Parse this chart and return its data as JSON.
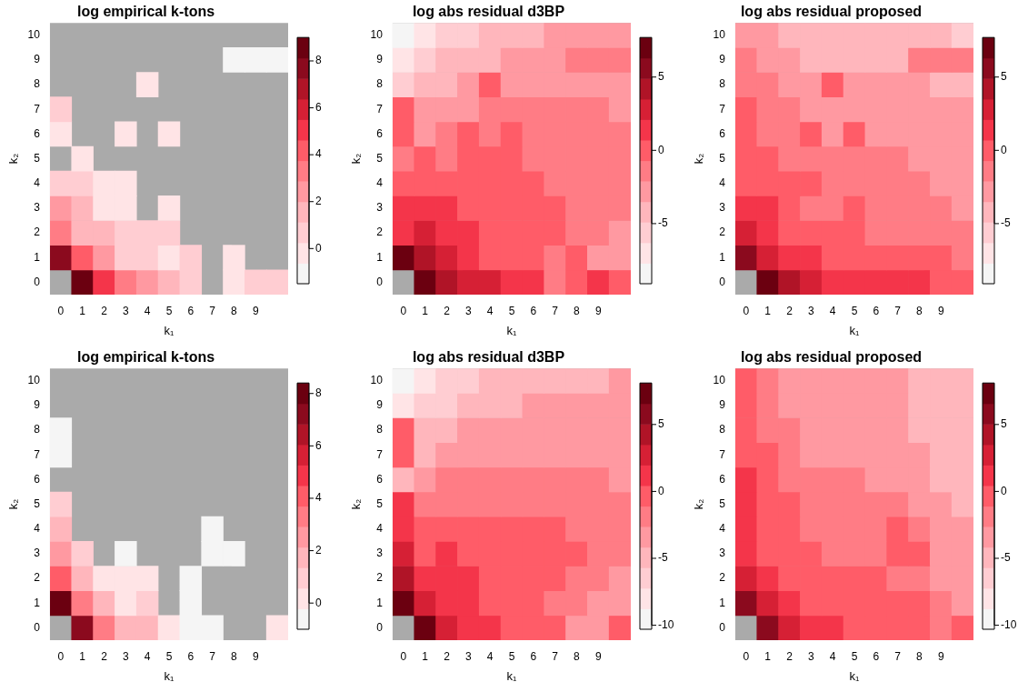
{
  "chart_data": [
    {
      "type": "heatmap",
      "title": "log empirical k-tons",
      "xlabel": "k₁",
      "ylabel": "k₂",
      "categories": [
        "0",
        "1",
        "2",
        "3",
        "4",
        "5",
        "6",
        "7",
        "8",
        "9",
        null
      ],
      "y_categories": [
        "10",
        "9",
        "8",
        "7",
        "6",
        "5",
        "4",
        "3",
        "2",
        "1",
        "0"
      ],
      "clim": [
        -1.5,
        9.0
      ],
      "cticks": [
        0,
        2,
        4,
        6,
        8
      ],
      "cells": [
        [
          null,
          null,
          null,
          null,
          null,
          null,
          null,
          null,
          null,
          null,
          null
        ],
        [
          null,
          null,
          null,
          null,
          null,
          null,
          null,
          null,
          -1.1,
          -1.1,
          -1.1
        ],
        [
          null,
          null,
          null,
          null,
          -0.2,
          null,
          null,
          null,
          null,
          null,
          null
        ],
        [
          0.7,
          null,
          null,
          null,
          null,
          null,
          null,
          null,
          null,
          null,
          null
        ],
        [
          -0.2,
          null,
          null,
          -0.2,
          null,
          -0.2,
          null,
          null,
          null,
          null,
          null
        ],
        [
          null,
          -0.2,
          null,
          null,
          null,
          null,
          null,
          null,
          null,
          null,
          null
        ],
        [
          0.7,
          0.7,
          -0.2,
          -0.2,
          null,
          null,
          null,
          null,
          null,
          null,
          null
        ],
        [
          2.4,
          1.6,
          -0.2,
          -0.2,
          null,
          -0.2,
          null,
          null,
          null,
          null,
          null
        ],
        [
          3.3,
          1.6,
          1.6,
          0.7,
          0.7,
          0.7,
          null,
          null,
          null,
          null,
          null
        ],
        [
          7.7,
          4.2,
          2.4,
          0.7,
          0.7,
          -0.2,
          0.7,
          null,
          -0.2,
          null,
          null
        ],
        [
          null,
          8.6,
          5.1,
          3.3,
          2.4,
          1.6,
          0.7,
          null,
          -0.2,
          0.7,
          0.7
        ]
      ]
    },
    {
      "type": "heatmap",
      "title": "log abs residual d3BP",
      "xlabel": "k₁",
      "ylabel": "k₂",
      "categories": [
        "0",
        "1",
        "2",
        "3",
        "4",
        "5",
        "6",
        "7",
        "8",
        "9",
        null
      ],
      "y_categories": [
        "10",
        "9",
        "8",
        "7",
        "6",
        "5",
        "4",
        "3",
        "2",
        "1",
        "0"
      ],
      "clim": [
        -9.1,
        7.7
      ],
      "cticks": [
        -5,
        0,
        5
      ],
      "cells": [
        [
          -8.4,
          -7.0,
          -5.6,
          -5.6,
          -4.2,
          -4.2,
          -4.2,
          -2.8,
          -2.8,
          -2.8,
          -2.8
        ],
        [
          -7.0,
          -5.6,
          -4.2,
          -4.2,
          -4.2,
          -2.8,
          -2.8,
          -2.8,
          -1.4,
          -1.4,
          -1.4
        ],
        [
          -5.6,
          -4.2,
          -4.2,
          -2.8,
          0.0,
          -2.8,
          -2.8,
          -2.8,
          -2.8,
          -2.8,
          -2.8
        ],
        [
          0.0,
          -2.8,
          -2.8,
          -2.8,
          -1.4,
          -1.4,
          -1.4,
          -1.4,
          -1.4,
          -1.4,
          -2.8
        ],
        [
          0.0,
          -2.8,
          -1.4,
          0.0,
          -1.4,
          0.0,
          -1.4,
          -1.4,
          -1.4,
          -1.4,
          -1.4
        ],
        [
          -1.4,
          0.0,
          -1.4,
          0.0,
          0.0,
          0.0,
          -1.4,
          -1.4,
          -1.4,
          -1.4,
          -1.4
        ],
        [
          0.0,
          0.0,
          0.0,
          0.0,
          0.0,
          0.0,
          0.0,
          -1.4,
          -1.4,
          -1.4,
          -1.4
        ],
        [
          1.4,
          1.4,
          1.4,
          0.0,
          0.0,
          0.0,
          0.0,
          0.0,
          -1.4,
          -1.4,
          -1.4
        ],
        [
          1.4,
          2.8,
          1.4,
          1.4,
          0.0,
          0.0,
          0.0,
          0.0,
          -1.4,
          -1.4,
          -2.8
        ],
        [
          7.0,
          4.2,
          2.8,
          1.4,
          0.0,
          0.0,
          0.0,
          -1.4,
          0.0,
          -2.8,
          -2.8
        ],
        [
          null,
          7.0,
          4.2,
          2.8,
          2.8,
          1.4,
          1.4,
          -1.4,
          0.0,
          1.4,
          0.0
        ]
      ]
    },
    {
      "type": "heatmap",
      "title": "log abs residual proposed",
      "xlabel": "k₁",
      "ylabel": "k₂",
      "categories": [
        "0",
        "1",
        "2",
        "3",
        "4",
        "5",
        "6",
        "7",
        "8",
        "9",
        null
      ],
      "y_categories": [
        "10",
        "9",
        "8",
        "7",
        "6",
        "5",
        "4",
        "3",
        "2",
        "1",
        "0"
      ],
      "clim": [
        -9.1,
        7.7
      ],
      "cticks": [
        -5,
        0,
        5
      ],
      "cells": [
        [
          -2.8,
          -2.8,
          -4.2,
          -4.2,
          -4.2,
          -4.2,
          -4.2,
          -4.2,
          -4.2,
          -4.2,
          -5.6
        ],
        [
          -1.4,
          -2.8,
          -2.8,
          -4.2,
          -4.2,
          -4.2,
          -4.2,
          -4.2,
          -1.4,
          -1.4,
          -1.4
        ],
        [
          -1.4,
          -1.4,
          -2.8,
          -2.8,
          0.0,
          -2.8,
          -2.8,
          -2.8,
          -2.8,
          -4.2,
          -4.2
        ],
        [
          0.0,
          -1.4,
          -1.4,
          -2.8,
          -2.8,
          -2.8,
          -2.8,
          -2.8,
          -2.8,
          -2.8,
          -2.8
        ],
        [
          0.0,
          -1.4,
          -1.4,
          0.0,
          -2.8,
          0.0,
          -2.8,
          -2.8,
          -2.8,
          -2.8,
          -2.8
        ],
        [
          0.0,
          0.0,
          -1.4,
          -1.4,
          -1.4,
          -1.4,
          -1.4,
          -1.4,
          -2.8,
          -2.8,
          -2.8
        ],
        [
          0.0,
          0.0,
          0.0,
          0.0,
          -1.4,
          -1.4,
          -1.4,
          -1.4,
          -1.4,
          -2.8,
          -2.8
        ],
        [
          1.4,
          1.4,
          0.0,
          -1.4,
          -1.4,
          0.0,
          -1.4,
          -1.4,
          -1.4,
          -1.4,
          -2.8
        ],
        [
          2.8,
          1.4,
          0.0,
          0.0,
          0.0,
          0.0,
          -1.4,
          -1.4,
          -1.4,
          -1.4,
          -1.4
        ],
        [
          5.6,
          2.8,
          1.4,
          1.4,
          0.0,
          0.0,
          0.0,
          0.0,
          0.0,
          0.0,
          -1.4
        ],
        [
          null,
          7.0,
          4.2,
          2.8,
          1.4,
          1.4,
          1.4,
          1.4,
          1.4,
          0.0,
          0.0
        ]
      ]
    },
    {
      "type": "heatmap",
      "title": "log empirical k-tons",
      "xlabel": "k₁",
      "ylabel": "k₂",
      "categories": [
        "0",
        "1",
        "2",
        "3",
        "4",
        "5",
        "6",
        "7",
        "8",
        "9",
        null
      ],
      "y_categories": [
        "10",
        "9",
        "8",
        "7",
        "6",
        "5",
        "4",
        "3",
        "2",
        "1",
        "0"
      ],
      "clim": [
        -1.0,
        8.4
      ],
      "cticks": [
        0,
        2,
        4,
        6,
        8
      ],
      "cells": [
        [
          null,
          null,
          null,
          null,
          null,
          null,
          null,
          null,
          null,
          null,
          null
        ],
        [
          null,
          null,
          null,
          null,
          null,
          null,
          null,
          null,
          null,
          null,
          null
        ],
        [
          -0.6,
          null,
          null,
          null,
          null,
          null,
          null,
          null,
          null,
          null,
          null
        ],
        [
          -0.6,
          null,
          null,
          null,
          null,
          null,
          null,
          null,
          null,
          null,
          null
        ],
        [
          null,
          null,
          null,
          null,
          null,
          null,
          null,
          null,
          null,
          null,
          null
        ],
        [
          1.0,
          null,
          null,
          null,
          null,
          null,
          null,
          null,
          null,
          null,
          null
        ],
        [
          1.7,
          null,
          null,
          null,
          null,
          null,
          null,
          -0.6,
          null,
          null,
          null
        ],
        [
          2.5,
          1.0,
          null,
          -0.6,
          null,
          null,
          null,
          -0.6,
          -0.6,
          null,
          null
        ],
        [
          4.1,
          1.7,
          0.2,
          0.2,
          0.2,
          null,
          -0.6,
          null,
          null,
          null,
          null
        ],
        [
          8.0,
          3.3,
          1.7,
          0.2,
          1.0,
          null,
          -0.6,
          null,
          null,
          null,
          null
        ],
        [
          null,
          7.2,
          3.3,
          1.7,
          1.7,
          0.2,
          -0.6,
          -0.6,
          null,
          null,
          0.2
        ]
      ]
    },
    {
      "type": "heatmap",
      "title": "log abs residual d3BP",
      "xlabel": "k₁",
      "ylabel": "k₂",
      "categories": [
        "0",
        "1",
        "2",
        "3",
        "4",
        "5",
        "6",
        "7",
        "8",
        "9",
        null
      ],
      "y_categories": [
        "10",
        "9",
        "8",
        "7",
        "6",
        "5",
        "4",
        "3",
        "2",
        "1",
        "0"
      ],
      "clim": [
        -10.3,
        8.1
      ],
      "cticks": [
        -10,
        -5,
        0,
        5
      ],
      "cells": [
        [
          -9.5,
          -8.0,
          -6.5,
          -6.5,
          -5.0,
          -5.0,
          -5.0,
          -5.0,
          -5.0,
          -5.0,
          -3.4
        ],
        [
          -8.0,
          -6.5,
          -6.5,
          -5.0,
          -5.0,
          -5.0,
          -3.4,
          -3.4,
          -3.4,
          -3.4,
          -3.4
        ],
        [
          -0.4,
          -5.0,
          -5.0,
          -3.4,
          -3.4,
          -3.4,
          -3.4,
          -3.4,
          -3.4,
          -3.4,
          -3.4
        ],
        [
          -0.4,
          -5.0,
          -3.4,
          -3.4,
          -3.4,
          -3.4,
          -3.4,
          -3.4,
          -3.4,
          -3.4,
          -3.4
        ],
        [
          -5.0,
          -3.4,
          -1.9,
          -1.9,
          -1.9,
          -1.9,
          -1.9,
          -1.9,
          -1.9,
          -1.9,
          -3.4
        ],
        [
          1.2,
          -1.9,
          -1.9,
          -1.9,
          -1.9,
          -1.9,
          -1.9,
          -1.9,
          -1.9,
          -1.9,
          -1.9
        ],
        [
          1.2,
          -0.4,
          -0.4,
          -0.4,
          -0.4,
          -0.4,
          -0.4,
          -0.4,
          -1.9,
          -1.9,
          -1.9
        ],
        [
          2.7,
          -0.4,
          1.2,
          -0.4,
          -0.4,
          -0.4,
          -0.4,
          -0.4,
          -0.4,
          -1.9,
          -1.9
        ],
        [
          4.2,
          1.2,
          1.2,
          1.2,
          -0.4,
          -0.4,
          -0.4,
          -0.4,
          -1.9,
          -1.9,
          -3.4
        ],
        [
          7.3,
          2.7,
          1.2,
          1.2,
          -0.4,
          -0.4,
          -0.4,
          -1.9,
          -1.9,
          -3.4,
          -3.4
        ],
        [
          null,
          7.3,
          2.7,
          1.2,
          1.2,
          -0.4,
          -0.4,
          -0.4,
          -3.4,
          -3.4,
          -0.4
        ]
      ]
    },
    {
      "type": "heatmap",
      "title": "log abs residual proposed",
      "xlabel": "k₁",
      "ylabel": "k₂",
      "categories": [
        "0",
        "1",
        "2",
        "3",
        "4",
        "5",
        "6",
        "7",
        "8",
        "9",
        null
      ],
      "y_categories": [
        "10",
        "9",
        "8",
        "7",
        "6",
        "5",
        "4",
        "3",
        "2",
        "1",
        "0"
      ],
      "clim": [
        -10.3,
        8.1
      ],
      "cticks": [
        -10,
        -5,
        0,
        5
      ],
      "cells": [
        [
          -0.4,
          -1.9,
          -3.4,
          -3.4,
          -3.4,
          -3.4,
          -3.4,
          -3.4,
          -5.0,
          -5.0,
          -5.0
        ],
        [
          -0.4,
          -1.9,
          -3.4,
          -3.4,
          -3.4,
          -3.4,
          -3.4,
          -3.4,
          -5.0,
          -5.0,
          -5.0
        ],
        [
          -0.4,
          -1.9,
          -1.9,
          -3.4,
          -3.4,
          -3.4,
          -3.4,
          -3.4,
          -5.0,
          -5.0,
          -5.0
        ],
        [
          -0.4,
          -0.4,
          -1.9,
          -3.4,
          -3.4,
          -3.4,
          -3.4,
          -3.4,
          -3.4,
          -5.0,
          -5.0
        ],
        [
          1.2,
          -0.4,
          -1.9,
          -1.9,
          -1.9,
          -1.9,
          -3.4,
          -3.4,
          -3.4,
          -5.0,
          -5.0
        ],
        [
          1.2,
          -0.4,
          -0.4,
          -1.9,
          -1.9,
          -1.9,
          -1.9,
          -1.9,
          -3.4,
          -3.4,
          -5.0
        ],
        [
          1.2,
          -0.4,
          -0.4,
          -1.9,
          -1.9,
          -1.9,
          -1.9,
          -0.4,
          -1.9,
          -3.4,
          -3.4
        ],
        [
          1.2,
          -0.4,
          -0.4,
          -0.4,
          -1.9,
          -1.9,
          -1.9,
          -0.4,
          -0.4,
          -3.4,
          -3.4
        ],
        [
          2.7,
          1.2,
          -0.4,
          -0.4,
          -0.4,
          -0.4,
          -0.4,
          -1.9,
          -1.9,
          -3.4,
          -3.4
        ],
        [
          5.8,
          2.7,
          1.2,
          -0.4,
          -0.4,
          -0.4,
          -0.4,
          -0.4,
          -0.4,
          -1.9,
          -3.4
        ],
        [
          null,
          5.8,
          2.7,
          1.2,
          1.2,
          -0.4,
          -0.4,
          -0.4,
          -0.4,
          -1.9,
          -0.4
        ]
      ]
    }
  ]
}
